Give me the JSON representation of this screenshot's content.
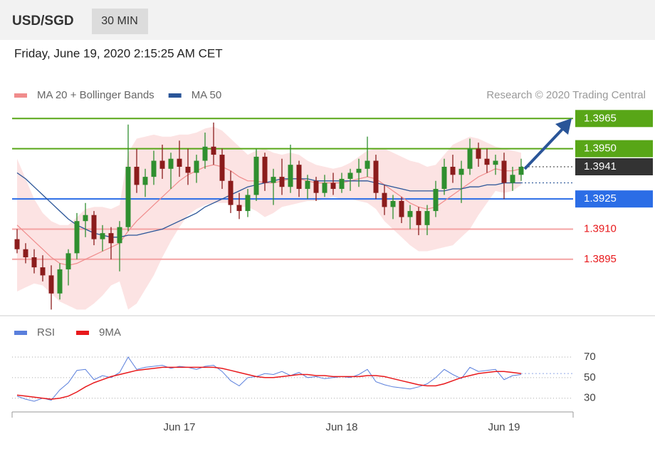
{
  "chart_data": [
    {
      "type": "candlestick",
      "title": "USD/SGD",
      "subtitle": "30 MIN",
      "date": "Friday, June 19, 2020 2:15:25 AM CET",
      "credit": "Research © 2020 Trading Central",
      "ylim": [
        1.3868,
        1.3969
      ],
      "up_color": "#2f8f2f",
      "down_color": "#8b1c1c",
      "open": [
        1.3905,
        1.39,
        1.3896,
        1.3891,
        1.3887,
        1.3878,
        1.389,
        1.3898,
        1.3914,
        1.3917,
        1.3905,
        1.3908,
        1.3903,
        1.3911,
        1.3941,
        1.3932,
        1.3936,
        1.3944,
        1.394,
        1.3945,
        1.3941,
        1.3938,
        1.3944,
        1.3951,
        1.3947,
        1.3934,
        1.3922,
        1.3919,
        1.3927,
        1.3946,
        1.3933,
        1.3936,
        1.3931,
        1.3942,
        1.393,
        1.3934,
        1.3928,
        1.3933,
        1.393,
        1.3935,
        1.3938,
        1.394,
        1.3944,
        1.3928,
        1.3921,
        1.3924,
        1.3916,
        1.3919,
        1.3912,
        1.3919,
        1.393,
        1.3941,
        1.3937,
        1.394,
        1.395,
        1.3945,
        1.3942,
        1.3944,
        1.3933,
        1.3937
      ],
      "high": [
        1.391,
        1.3903,
        1.39,
        1.3897,
        1.3892,
        1.3893,
        1.39,
        1.3918,
        1.3923,
        1.3919,
        1.3912,
        1.3911,
        1.3914,
        1.3962,
        1.395,
        1.394,
        1.3949,
        1.3952,
        1.3948,
        1.3954,
        1.395,
        1.3947,
        1.3958,
        1.3963,
        1.395,
        1.3939,
        1.3928,
        1.393,
        1.395,
        1.3948,
        1.394,
        1.3945,
        1.3952,
        1.3944,
        1.3937,
        1.3936,
        1.3937,
        1.3938,
        1.3938,
        1.394,
        1.3945,
        1.3956,
        1.3947,
        1.3932,
        1.3927,
        1.3926,
        1.3922,
        1.3921,
        1.3922,
        1.3934,
        1.3945,
        1.3947,
        1.3944,
        1.3955,
        1.3953,
        1.395,
        1.3947,
        1.3948,
        1.3941,
        1.3945
      ],
      "low": [
        1.3898,
        1.3893,
        1.3888,
        1.3884,
        1.387,
        1.3875,
        1.3882,
        1.3895,
        1.3906,
        1.3902,
        1.3899,
        1.3895,
        1.3889,
        1.3909,
        1.3928,
        1.3926,
        1.3932,
        1.3935,
        1.393,
        1.3936,
        1.3932,
        1.3933,
        1.394,
        1.3942,
        1.393,
        1.3918,
        1.3915,
        1.3916,
        1.3924,
        1.3929,
        1.3922,
        1.3927,
        1.3928,
        1.3926,
        1.3925,
        1.3924,
        1.3926,
        1.3927,
        1.3928,
        1.3929,
        1.3931,
        1.3936,
        1.3925,
        1.3917,
        1.3915,
        1.3913,
        1.391,
        1.3907,
        1.3907,
        1.3916,
        1.3927,
        1.3933,
        1.3923,
        1.3937,
        1.3941,
        1.3938,
        1.3937,
        1.3925,
        1.3929,
        1.3934
      ],
      "close": [
        1.39,
        1.3896,
        1.3891,
        1.3887,
        1.3878,
        1.389,
        1.3898,
        1.3914,
        1.3917,
        1.3905,
        1.3908,
        1.3903,
        1.3911,
        1.3941,
        1.3932,
        1.3936,
        1.3944,
        1.394,
        1.3945,
        1.3941,
        1.3938,
        1.3944,
        1.3951,
        1.3947,
        1.3934,
        1.3922,
        1.3919,
        1.3927,
        1.3946,
        1.3933,
        1.3936,
        1.3931,
        1.3942,
        1.393,
        1.3934,
        1.3928,
        1.3933,
        1.393,
        1.3935,
        1.3938,
        1.394,
        1.3944,
        1.3928,
        1.3921,
        1.3924,
        1.3916,
        1.3919,
        1.3912,
        1.3919,
        1.393,
        1.3941,
        1.3937,
        1.394,
        1.395,
        1.3945,
        1.3942,
        1.3944,
        1.3933,
        1.3937,
        1.3941
      ],
      "series": [
        {
          "name": "MA 20 + Bollinger Bands",
          "color": "#f08c8c",
          "band_color": "#fcdede",
          "values": [
            1.3912,
            1.3908,
            1.3904,
            1.39,
            1.3896,
            1.3893,
            1.3892,
            1.3893,
            1.3895,
            1.3897,
            1.3899,
            1.3901,
            1.3903,
            1.3909,
            1.3914,
            1.3918,
            1.3922,
            1.3926,
            1.393,
            1.3934,
            1.3937,
            1.3939,
            1.3941,
            1.3942,
            1.3941,
            1.3939,
            1.3936,
            1.3934,
            1.3934,
            1.3933,
            1.3933,
            1.3934,
            1.3935,
            1.3935,
            1.3934,
            1.3933,
            1.3933,
            1.3933,
            1.3933,
            1.3934,
            1.3935,
            1.3936,
            1.3935,
            1.3932,
            1.3929,
            1.3926,
            1.3923,
            1.3921,
            1.392,
            1.3921,
            1.3924,
            1.3927,
            1.393,
            1.3933,
            1.3936,
            1.3938,
            1.394,
            1.3939,
            1.3939,
            1.394
          ],
          "upper": [
            1.3945,
            1.3935,
            1.3925,
            1.3918,
            1.3914,
            1.3912,
            1.3912,
            1.3916,
            1.392,
            1.3921,
            1.3921,
            1.392,
            1.3922,
            1.3948,
            1.3955,
            1.3956,
            1.3957,
            1.3956,
            1.3956,
            1.3957,
            1.3957,
            1.3958,
            1.396,
            1.3961,
            1.3959,
            1.3955,
            1.3951,
            1.3947,
            1.3949,
            1.395,
            1.3948,
            1.3947,
            1.3948,
            1.3947,
            1.3944,
            1.3942,
            1.3941,
            1.394,
            1.3941,
            1.3943,
            1.3946,
            1.3949,
            1.395,
            1.395,
            1.3948,
            1.3946,
            1.3944,
            1.3943,
            1.3941,
            1.3942,
            1.3947,
            1.3952,
            1.3954,
            1.3956,
            1.3955,
            1.3953,
            1.3951,
            1.395,
            1.3949,
            1.3948
          ],
          "lower": [
            1.3879,
            1.3881,
            1.3883,
            1.3882,
            1.3878,
            1.3874,
            1.3872,
            1.387,
            1.387,
            1.3873,
            1.3877,
            1.3882,
            1.3884,
            1.387,
            1.3873,
            1.388,
            1.3887,
            1.3896,
            1.3904,
            1.3911,
            1.3917,
            1.392,
            1.3922,
            1.3923,
            1.3923,
            1.3923,
            1.3921,
            1.3921,
            1.3919,
            1.3916,
            1.3918,
            1.3921,
            1.3922,
            1.3923,
            1.3924,
            1.3924,
            1.3925,
            1.3926,
            1.3925,
            1.3925,
            1.3924,
            1.3923,
            1.392,
            1.3914,
            1.391,
            1.3906,
            1.3902,
            1.3899,
            1.3899,
            1.39,
            1.3901,
            1.3902,
            1.3906,
            1.391,
            1.3917,
            1.3923,
            1.3929,
            1.3928,
            1.3929,
            1.3932
          ]
        },
        {
          "name": "MA 50",
          "color": "#2a5598",
          "values": [
            1.3938,
            1.3935,
            1.3931,
            1.3927,
            1.3923,
            1.3919,
            1.3915,
            1.3912,
            1.391,
            1.3908,
            1.3907,
            1.3906,
            1.3906,
            1.3907,
            1.3907,
            1.3908,
            1.3909,
            1.391,
            1.3912,
            1.3914,
            1.3916,
            1.3918,
            1.3921,
            1.3923,
            1.3925,
            1.3927,
            1.3929,
            1.3931,
            1.3932,
            1.3933,
            1.3934,
            1.3935,
            1.3935,
            1.3935,
            1.3935,
            1.3934,
            1.3934,
            1.3934,
            1.3934,
            1.3934,
            1.3934,
            1.3934,
            1.3933,
            1.3932,
            1.3931,
            1.393,
            1.3929,
            1.3929,
            1.3929,
            1.3929,
            1.3929,
            1.393,
            1.393,
            1.3931,
            1.3931,
            1.3932,
            1.3932,
            1.3933,
            1.3933,
            1.3933
          ]
        }
      ],
      "levels": [
        {
          "value": 1.3965,
          "color": "#58a617",
          "style": "box"
        },
        {
          "value": 1.395,
          "label": "1.3950",
          "color": "#58a617",
          "style": "box"
        },
        {
          "value": 1.3941,
          "color": "#333333",
          "style": "current"
        },
        {
          "value": 1.3925,
          "color": "#2b6de6",
          "style": "box"
        },
        {
          "value": 1.391,
          "label": "1.3910",
          "color": "#f4a3a3",
          "text_color": "#e8191c",
          "style": "text"
        },
        {
          "value": 1.3895,
          "color": "#f4a3a3",
          "text_color": "#e8191c",
          "style": "text"
        }
      ]
    },
    {
      "type": "line",
      "categories": [
        null,
        null,
        null,
        null,
        null,
        null,
        null,
        null,
        null,
        null,
        null,
        null,
        null,
        null,
        null,
        null,
        null,
        null,
        null,
        "Jun 17",
        null,
        null,
        null,
        null,
        null,
        null,
        null,
        null,
        null,
        null,
        null,
        null,
        null,
        null,
        null,
        null,
        null,
        null,
        "Jun 18",
        null,
        null,
        null,
        null,
        null,
        null,
        null,
        null,
        null,
        null,
        null,
        null,
        null,
        null,
        null,
        null,
        null,
        null,
        "Jun 19",
        null,
        null
      ],
      "ylim": [
        18,
        79
      ],
      "yticks": [
        30,
        50,
        70
      ],
      "grid": true,
      "series": [
        {
          "name": "RSI",
          "color": "#5a7fdc",
          "values": [
            32,
            29,
            27,
            30,
            28,
            38,
            45,
            57,
            58,
            48,
            52,
            50,
            55,
            70,
            58,
            60,
            61,
            62,
            59,
            61,
            60,
            58,
            61,
            62,
            56,
            47,
            42,
            50,
            51,
            54,
            53,
            56,
            52,
            55,
            50,
            51,
            49,
            50,
            51,
            50,
            53,
            58,
            46,
            43,
            41,
            40,
            39,
            41,
            44,
            50,
            58,
            53,
            49,
            60,
            56,
            57,
            58,
            48,
            52,
            53
          ]
        },
        {
          "name": "9MA",
          "color": "#e8191c",
          "values": [
            33,
            32,
            31,
            30,
            29,
            30,
            32,
            36,
            41,
            45,
            48,
            51,
            53,
            55,
            57,
            58,
            59,
            60,
            60,
            60,
            60,
            60,
            60,
            60,
            59,
            57,
            55,
            53,
            51,
            50,
            50,
            51,
            52,
            53,
            53,
            52,
            52,
            51,
            51,
            51,
            51,
            52,
            52,
            51,
            49,
            47,
            45,
            43,
            42,
            42,
            44,
            47,
            50,
            52,
            54,
            55,
            56,
            56,
            55,
            54
          ]
        }
      ]
    }
  ]
}
